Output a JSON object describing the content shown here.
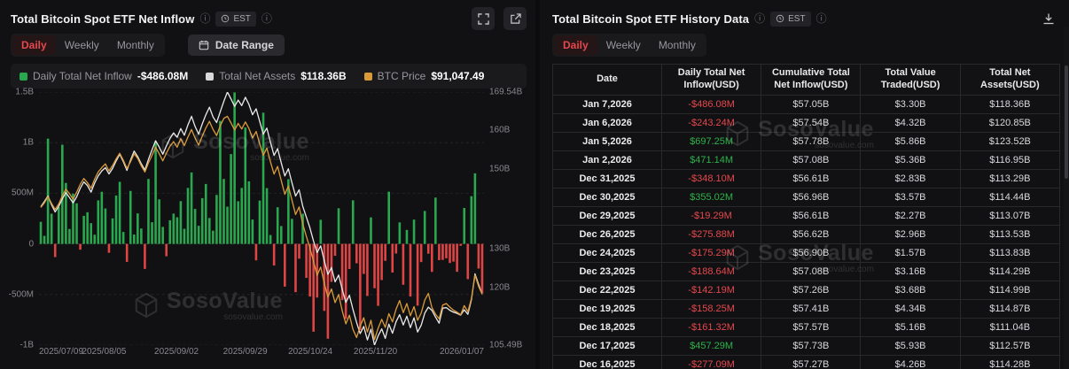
{
  "est_label": "EST",
  "tabs": [
    "Daily",
    "Weekly",
    "Monthly"
  ],
  "watermark": {
    "brand": "SosoValue",
    "domain": "sosovalue.com"
  },
  "left_panel": {
    "title": "Total Bitcoin Spot ETF Net Inflow",
    "date_range_label": "Date Range"
  },
  "legend": [
    {
      "label": "Daily Total Net Inflow",
      "value": "-$486.08M",
      "color": "#2aa84f"
    },
    {
      "label": "Total Net Assets",
      "value": "$118.36B",
      "color": "#d9d9d9"
    },
    {
      "label": "BTC Price",
      "value": "$91,047.49",
      "color": "#d99b3a"
    }
  ],
  "chart_data": {
    "type": "bar",
    "title": "Total Bitcoin Spot ETF Net Inflow",
    "x_ticks": [
      {
        "index": 0,
        "label": "2025/07/09"
      },
      {
        "index": 18,
        "label": "2025/08/05"
      },
      {
        "index": 38,
        "label": "2025/09/02"
      },
      {
        "index": 57,
        "label": "2025/09/29"
      },
      {
        "index": 75,
        "label": "2025/10/24"
      },
      {
        "index": 93,
        "label": "2025/11/20"
      },
      {
        "index": 123,
        "label": "2026/01/07"
      }
    ],
    "left_axis": {
      "min": -1000,
      "max": 1500,
      "unit": "USD M",
      "ticks": [
        {
          "value": 1500,
          "label": "1.5B"
        },
        {
          "value": 1000,
          "label": "1B"
        },
        {
          "value": 500,
          "label": "500M"
        },
        {
          "value": 0,
          "label": "0"
        },
        {
          "value": -500,
          "label": "-500M"
        },
        {
          "value": -1000,
          "label": "-1B"
        }
      ]
    },
    "right_axis": {
      "min": 105.49,
      "max": 169.54,
      "unit": "USD B",
      "ticks": [
        {
          "value": 169.54,
          "label": "169.54B"
        },
        {
          "value": 160,
          "label": "160B"
        },
        {
          "value": 150,
          "label": "150B"
        },
        {
          "value": 130,
          "label": "130B"
        },
        {
          "value": 120,
          "label": "120B"
        },
        {
          "value": 105.49,
          "label": "105.49B"
        }
      ]
    },
    "bar_series": {
      "name": "Daily Total Net Inflow",
      "unit": "USD M",
      "color": "#2aa84f",
      "negative_color": "#e04545",
      "values": [
        218,
        80,
        1040,
        298,
        -131,
        363,
        980,
        602,
        147,
        496,
        401,
        -57,
        277,
        312,
        205,
        91,
        430,
        515,
        350,
        -88,
        252,
        478,
        613,
        118,
        -178,
        523,
        93,
        301,
        152,
        -247,
        642,
        214,
        1012,
        440,
        168,
        -122,
        233,
        299,
        263,
        422,
        149,
        553,
        706,
        345,
        179,
        452,
        592,
        256,
        131,
        483,
        1215,
        642,
        368,
        887,
        1496,
        421,
        553,
        1150,
        618,
        241,
        -163,
        428,
        1296,
        551,
        88,
        -214,
        362,
        176,
        -422,
        639,
        247,
        -477,
        -146,
        298,
        -336,
        -520,
        -868,
        -531,
        238,
        -662,
        -937,
        -375,
        -118,
        352,
        -556,
        -741,
        -248,
        431,
        -192,
        -852,
        -297,
        -515,
        262,
        -438,
        -612,
        -357,
        -168,
        516,
        -283,
        -95,
        212,
        -404,
        138,
        -520,
        240,
        -610,
        -180,
        325,
        -97,
        -277.09,
        457.29,
        -161.32,
        -158.25,
        -142.19,
        -188.64,
        -175.29,
        -275.88,
        -19.29,
        355.02,
        -348.1,
        471.14,
        697.25,
        -243.24,
        -486.08
      ]
    },
    "line_series": [
      {
        "name": "Total Net Assets",
        "unit": "USD B",
        "color": "#e8e8e8",
        "axis": "right",
        "values": [
          140.5,
          141.8,
          143.2,
          141.0,
          139.2,
          140.6,
          142.5,
          144.1,
          142.8,
          141.5,
          143.0,
          145.2,
          146.8,
          145.9,
          144.2,
          146.5,
          148.3,
          149.6,
          150.4,
          148.8,
          150.2,
          152.1,
          153.8,
          151.9,
          149.7,
          152.3,
          154.6,
          153.2,
          151.4,
          149.8,
          152.5,
          154.9,
          157.2,
          155.6,
          153.8,
          155.9,
          157.8,
          159.2,
          158.1,
          160.3,
          158.6,
          161.2,
          163.4,
          160.8,
          158.9,
          161.5,
          163.8,
          165.7,
          163.2,
          161.8,
          164.5,
          167.2,
          169.54,
          167.8,
          165.9,
          167.5,
          166.1,
          168.2,
          166.4,
          163.8,
          165.3,
          162.1,
          158.9,
          160.4,
          156.8,
          153.5,
          155.2,
          151.6,
          148.3,
          150.1,
          146.5,
          143.2,
          144.8,
          140.6,
          137.9,
          135.2,
          131.8,
          128.9,
          130.6,
          126.8,
          123.4,
          125.1,
          121.5,
          123.2,
          119.6,
          116.3,
          118.1,
          114.5,
          111.2,
          108.4,
          110.2,
          106.8,
          109.5,
          105.49,
          107.8,
          109.6,
          107.2,
          110.8,
          108.5,
          111.4,
          113.2,
          110.6,
          112.8,
          109.9,
          112.4,
          108.8,
          110.5,
          113.6,
          115.1,
          114.28,
          112.57,
          111.04,
          114.87,
          114.99,
          114.29,
          113.83,
          113.53,
          113.07,
          114.44,
          113.29,
          116.95,
          123.52,
          120.85,
          118.36
        ]
      },
      {
        "name": "BTC Price",
        "unit": "USD k",
        "color": "#d99b3a",
        "axis": "overlay",
        "view_range": [
          81,
          131
        ],
        "values": [
          108.2,
          109.1,
          110.3,
          109.0,
          107.8,
          108.9,
          110.5,
          111.8,
          110.9,
          109.8,
          111.2,
          112.8,
          113.9,
          113.1,
          112.0,
          113.8,
          115.2,
          116.1,
          116.8,
          115.4,
          116.5,
          117.8,
          118.9,
          117.5,
          115.9,
          117.2,
          118.8,
          117.9,
          116.4,
          115.2,
          117.0,
          118.5,
          120.1,
          118.8,
          117.4,
          118.9,
          120.3,
          121.2,
          120.1,
          121.8,
          120.4,
          122.1,
          123.6,
          121.9,
          120.5,
          122.3,
          123.9,
          125.2,
          123.6,
          122.4,
          124.3,
          125.8,
          126.2,
          124.9,
          123.5,
          124.8,
          123.7,
          125.1,
          123.8,
          121.9,
          123.2,
          120.8,
          118.5,
          119.9,
          117.2,
          114.8,
          116.3,
          113.5,
          110.8,
          112.4,
          109.6,
          106.8,
          108.3,
          104.9,
          102.5,
          100.2,
          97.5,
          94.8,
          96.4,
          93.2,
          90.5,
          92.1,
          89.4,
          91.0,
          87.8,
          85.2,
          86.9,
          84.1,
          82.5,
          84.8,
          86.4,
          83.6,
          85.9,
          82.1,
          84.3,
          86.1,
          84.5,
          87.2,
          85.6,
          88.1,
          89.8,
          87.4,
          89.2,
          86.8,
          88.6,
          85.9,
          87.3,
          89.9,
          91.2,
          88.4,
          87.1,
          86.2,
          88.9,
          89.2,
          88.5,
          87.9,
          87.5,
          87.0,
          88.8,
          87.6,
          90.2,
          94.8,
          92.6,
          91.05
        ]
      }
    ]
  },
  "right_panel": {
    "title": "Total Bitcoin Spot ETF History Data"
  },
  "table": {
    "columns": [
      "Date",
      "Daily Total Net Inflow(USD)",
      "Cumulative Total Net Inflow(USD)",
      "Total Value Traded(USD)",
      "Total Net Assets(USD)"
    ],
    "rows": [
      [
        "Jan 7,2026",
        "-$486.08M",
        "$57.05B",
        "$3.30B",
        "$118.36B"
      ],
      [
        "Jan 6,2026",
        "-$243.24M",
        "$57.54B",
        "$4.32B",
        "$120.85B"
      ],
      [
        "Jan 5,2026",
        "$697.25M",
        "$57.78B",
        "$5.86B",
        "$123.52B"
      ],
      [
        "Jan 2,2026",
        "$471.14M",
        "$57.08B",
        "$5.36B",
        "$116.95B"
      ],
      [
        "Dec 31,2025",
        "-$348.10M",
        "$56.61B",
        "$2.83B",
        "$113.29B"
      ],
      [
        "Dec 30,2025",
        "$355.02M",
        "$56.96B",
        "$3.57B",
        "$114.44B"
      ],
      [
        "Dec 29,2025",
        "-$19.29M",
        "$56.61B",
        "$2.27B",
        "$113.07B"
      ],
      [
        "Dec 26,2025",
        "-$275.88M",
        "$56.62B",
        "$2.96B",
        "$113.53B"
      ],
      [
        "Dec 24,2025",
        "-$175.29M",
        "$56.90B",
        "$1.57B",
        "$113.83B"
      ],
      [
        "Dec 23,2025",
        "-$188.64M",
        "$57.08B",
        "$3.16B",
        "$114.29B"
      ],
      [
        "Dec 22,2025",
        "-$142.19M",
        "$57.26B",
        "$3.68B",
        "$114.99B"
      ],
      [
        "Dec 19,2025",
        "-$158.25M",
        "$57.41B",
        "$4.34B",
        "$114.87B"
      ],
      [
        "Dec 18,2025",
        "-$161.32M",
        "$57.57B",
        "$5.16B",
        "$111.04B"
      ],
      [
        "Dec 17,2025",
        "$457.29M",
        "$57.73B",
        "$5.93B",
        "$112.57B"
      ],
      [
        "Dec 16,2025",
        "-$277.09M",
        "$57.27B",
        "$4.26B",
        "$114.28B"
      ]
    ]
  }
}
